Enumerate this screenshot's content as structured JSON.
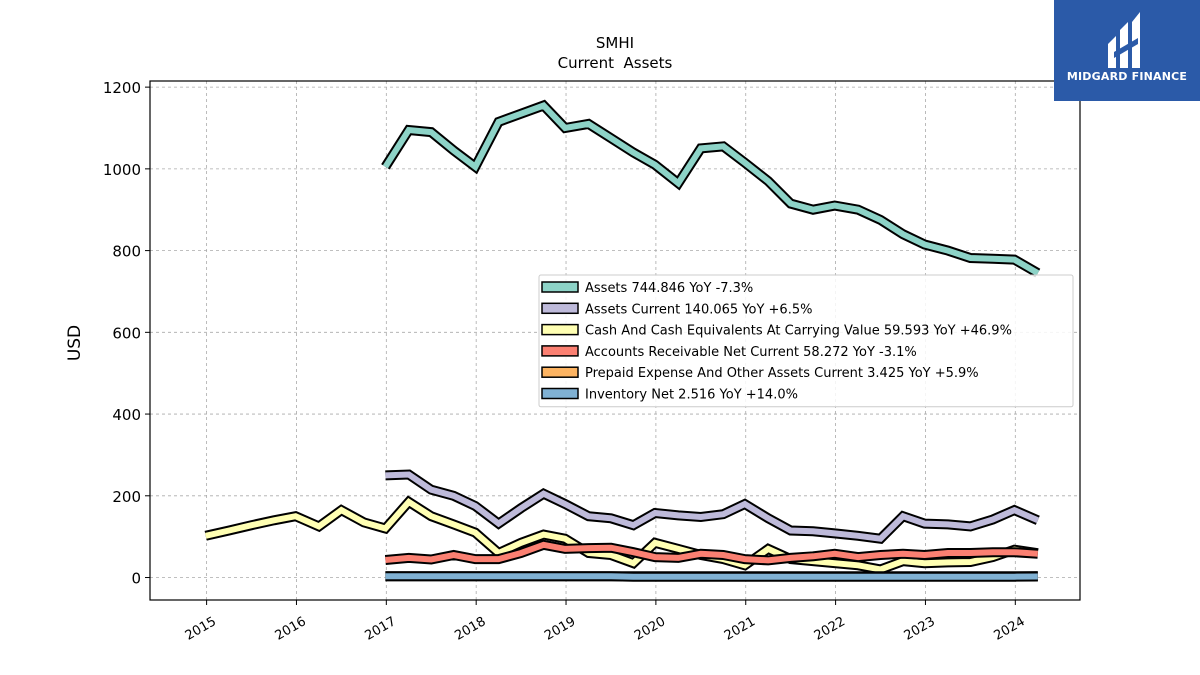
{
  "chart_data": {
    "type": "line",
    "title": "SMHI",
    "subtitle": "Current  Assets",
    "ylabel": "USD",
    "xlabel": "",
    "ylim": [
      -55,
      1215
    ],
    "xlim": [
      2014.37,
      2024.72
    ],
    "yticks": [
      0,
      200,
      400,
      600,
      800,
      1000,
      1200
    ],
    "xticks": [
      2015,
      2016,
      2017,
      2018,
      2019,
      2020,
      2021,
      2022,
      2023,
      2024
    ],
    "grid": true,
    "legend_position": "center-right",
    "series": [
      {
        "name": "Assets  744.846 YoY -7.3%",
        "color": "#8dd3c7",
        "x": [
          2016.99,
          2017.25,
          2017.5,
          2017.75,
          2017.99,
          2018.25,
          2018.5,
          2018.75,
          2018.99,
          2019.25,
          2019.5,
          2019.75,
          2019.99,
          2020.25,
          2020.5,
          2020.75,
          2020.99,
          2021.25,
          2021.5,
          2021.75,
          2021.99,
          2022.25,
          2022.5,
          2022.75,
          2022.99,
          2023.25,
          2023.5,
          2023.75,
          2023.99,
          2024.25
        ],
        "y": [
          1005,
          1095,
          1090,
          1045,
          1005,
          1115,
          1135,
          1155,
          1100,
          1110,
          1075,
          1040,
          1010,
          965,
          1050,
          1055,
          1015,
          970,
          915,
          900,
          910,
          900,
          875,
          840,
          815,
          800,
          782,
          780,
          778,
          744.846
        ]
      },
      {
        "name": "Assets Current  140.065 YoY +6.5%",
        "color": "#bebada",
        "x": [
          2016.99,
          2017.25,
          2017.5,
          2017.75,
          2017.99,
          2018.25,
          2018.5,
          2018.75,
          2018.99,
          2019.25,
          2019.5,
          2019.75,
          2019.99,
          2020.25,
          2020.5,
          2020.75,
          2020.99,
          2021.25,
          2021.5,
          2021.75,
          2021.99,
          2022.25,
          2022.5,
          2022.75,
          2022.99,
          2023.25,
          2023.5,
          2023.75,
          2023.99,
          2024.25
        ],
        "y": [
          250,
          252,
          215,
          200,
          175,
          132,
          170,
          205,
          180,
          150,
          145,
          128,
          158,
          152,
          148,
          155,
          180,
          145,
          115,
          113,
          108,
          102,
          95,
          150,
          132,
          130,
          125,
          142,
          165,
          140.065
        ]
      },
      {
        "name": "Cash And Cash Equivalents At Carrying Value  59.593 YoY +46.9%",
        "color": "#ffffb3",
        "x": [
          2014.99,
          2015.25,
          2015.5,
          2015.75,
          2015.99,
          2016.25,
          2016.5,
          2016.75,
          2016.99,
          2017.25,
          2017.5,
          2017.75,
          2017.99,
          2018.25,
          2018.5,
          2018.75,
          2018.99,
          2019.25,
          2019.5,
          2019.75,
          2019.99,
          2020.25,
          2020.5,
          2020.75,
          2020.99,
          2021.25,
          2021.5,
          2021.75,
          2021.99,
          2022.25,
          2022.5,
          2022.75,
          2022.99,
          2023.25,
          2023.5,
          2023.75,
          2023.99,
          2024.25
        ],
        "y": [
          102,
          115,
          128,
          140,
          150,
          125,
          165,
          135,
          120,
          185,
          150,
          130,
          110,
          60,
          85,
          105,
          95,
          60,
          55,
          35,
          85,
          70,
          55,
          45,
          30,
          70,
          45,
          40,
          35,
          30,
          20,
          40,
          35,
          37,
          38,
          50,
          68,
          59.593
        ]
      },
      {
        "name": "Accounts Receivable Net Current  58.272 YoY -3.1%",
        "color": "#fb8072",
        "x": [
          2016.99,
          2017.25,
          2017.5,
          2017.75,
          2017.99,
          2018.25,
          2018.5,
          2018.75,
          2018.99,
          2019.25,
          2019.5,
          2019.75,
          2019.99,
          2020.25,
          2020.5,
          2020.75,
          2020.99,
          2021.25,
          2021.5,
          2021.75,
          2021.99,
          2022.25,
          2022.5,
          2022.75,
          2022.99,
          2023.25,
          2023.5,
          2023.75,
          2023.99,
          2024.25
        ],
        "y": [
          43,
          48,
          44,
          55,
          45,
          45,
          60,
          80,
          70,
          72,
          73,
          62,
          50,
          48,
          58,
          55,
          45,
          42,
          48,
          52,
          58,
          50,
          55,
          58,
          55,
          60,
          60,
          62,
          62,
          58.272
        ]
      },
      {
        "name": "Prepaid Expense And Other Assets Current  3.425 YoY +5.9%",
        "color": "#fdb462",
        "x": [
          2016.99,
          2017.25,
          2017.5,
          2017.75,
          2017.99,
          2018.25,
          2018.5,
          2018.75,
          2018.99,
          2019.25,
          2019.5,
          2019.75,
          2019.99,
          2020.25,
          2020.5,
          2020.75,
          2020.99,
          2021.25,
          2021.5,
          2021.75,
          2021.99,
          2022.25,
          2022.5,
          2022.75,
          2022.99,
          2023.25,
          2023.5,
          2023.75,
          2023.99,
          2024.25
        ],
        "y": [
          3,
          3,
          3,
          3,
          3,
          3,
          3,
          3,
          3,
          3,
          3,
          3,
          3,
          3,
          3,
          3,
          3,
          3,
          3,
          3,
          3,
          3,
          3,
          3,
          3,
          3,
          3,
          3,
          3,
          3.425
        ]
      },
      {
        "name": "Inventory Net  2.516 YoY +14.0%",
        "color": "#80b1d3",
        "x": [
          2016.99,
          2017.25,
          2017.5,
          2017.75,
          2017.99,
          2018.25,
          2018.5,
          2018.75,
          2018.99,
          2019.25,
          2019.5,
          2019.75,
          2019.99,
          2020.25,
          2020.5,
          2020.75,
          2020.99,
          2021.25,
          2021.5,
          2021.75,
          2021.99,
          2022.25,
          2022.5,
          2022.75,
          2022.99,
          2023.25,
          2023.5,
          2023.75,
          2023.99,
          2024.25
        ],
        "y": [
          3,
          3,
          3,
          3,
          3,
          3,
          3,
          3,
          3,
          3,
          3,
          2,
          2,
          2,
          2,
          2,
          2,
          2,
          2,
          2,
          2,
          2,
          2,
          2,
          2,
          2,
          2,
          2,
          2,
          2.516
        ]
      }
    ]
  },
  "logo": {
    "text": "MIDGARD FINANCE",
    "background": "#2b5aa8"
  }
}
